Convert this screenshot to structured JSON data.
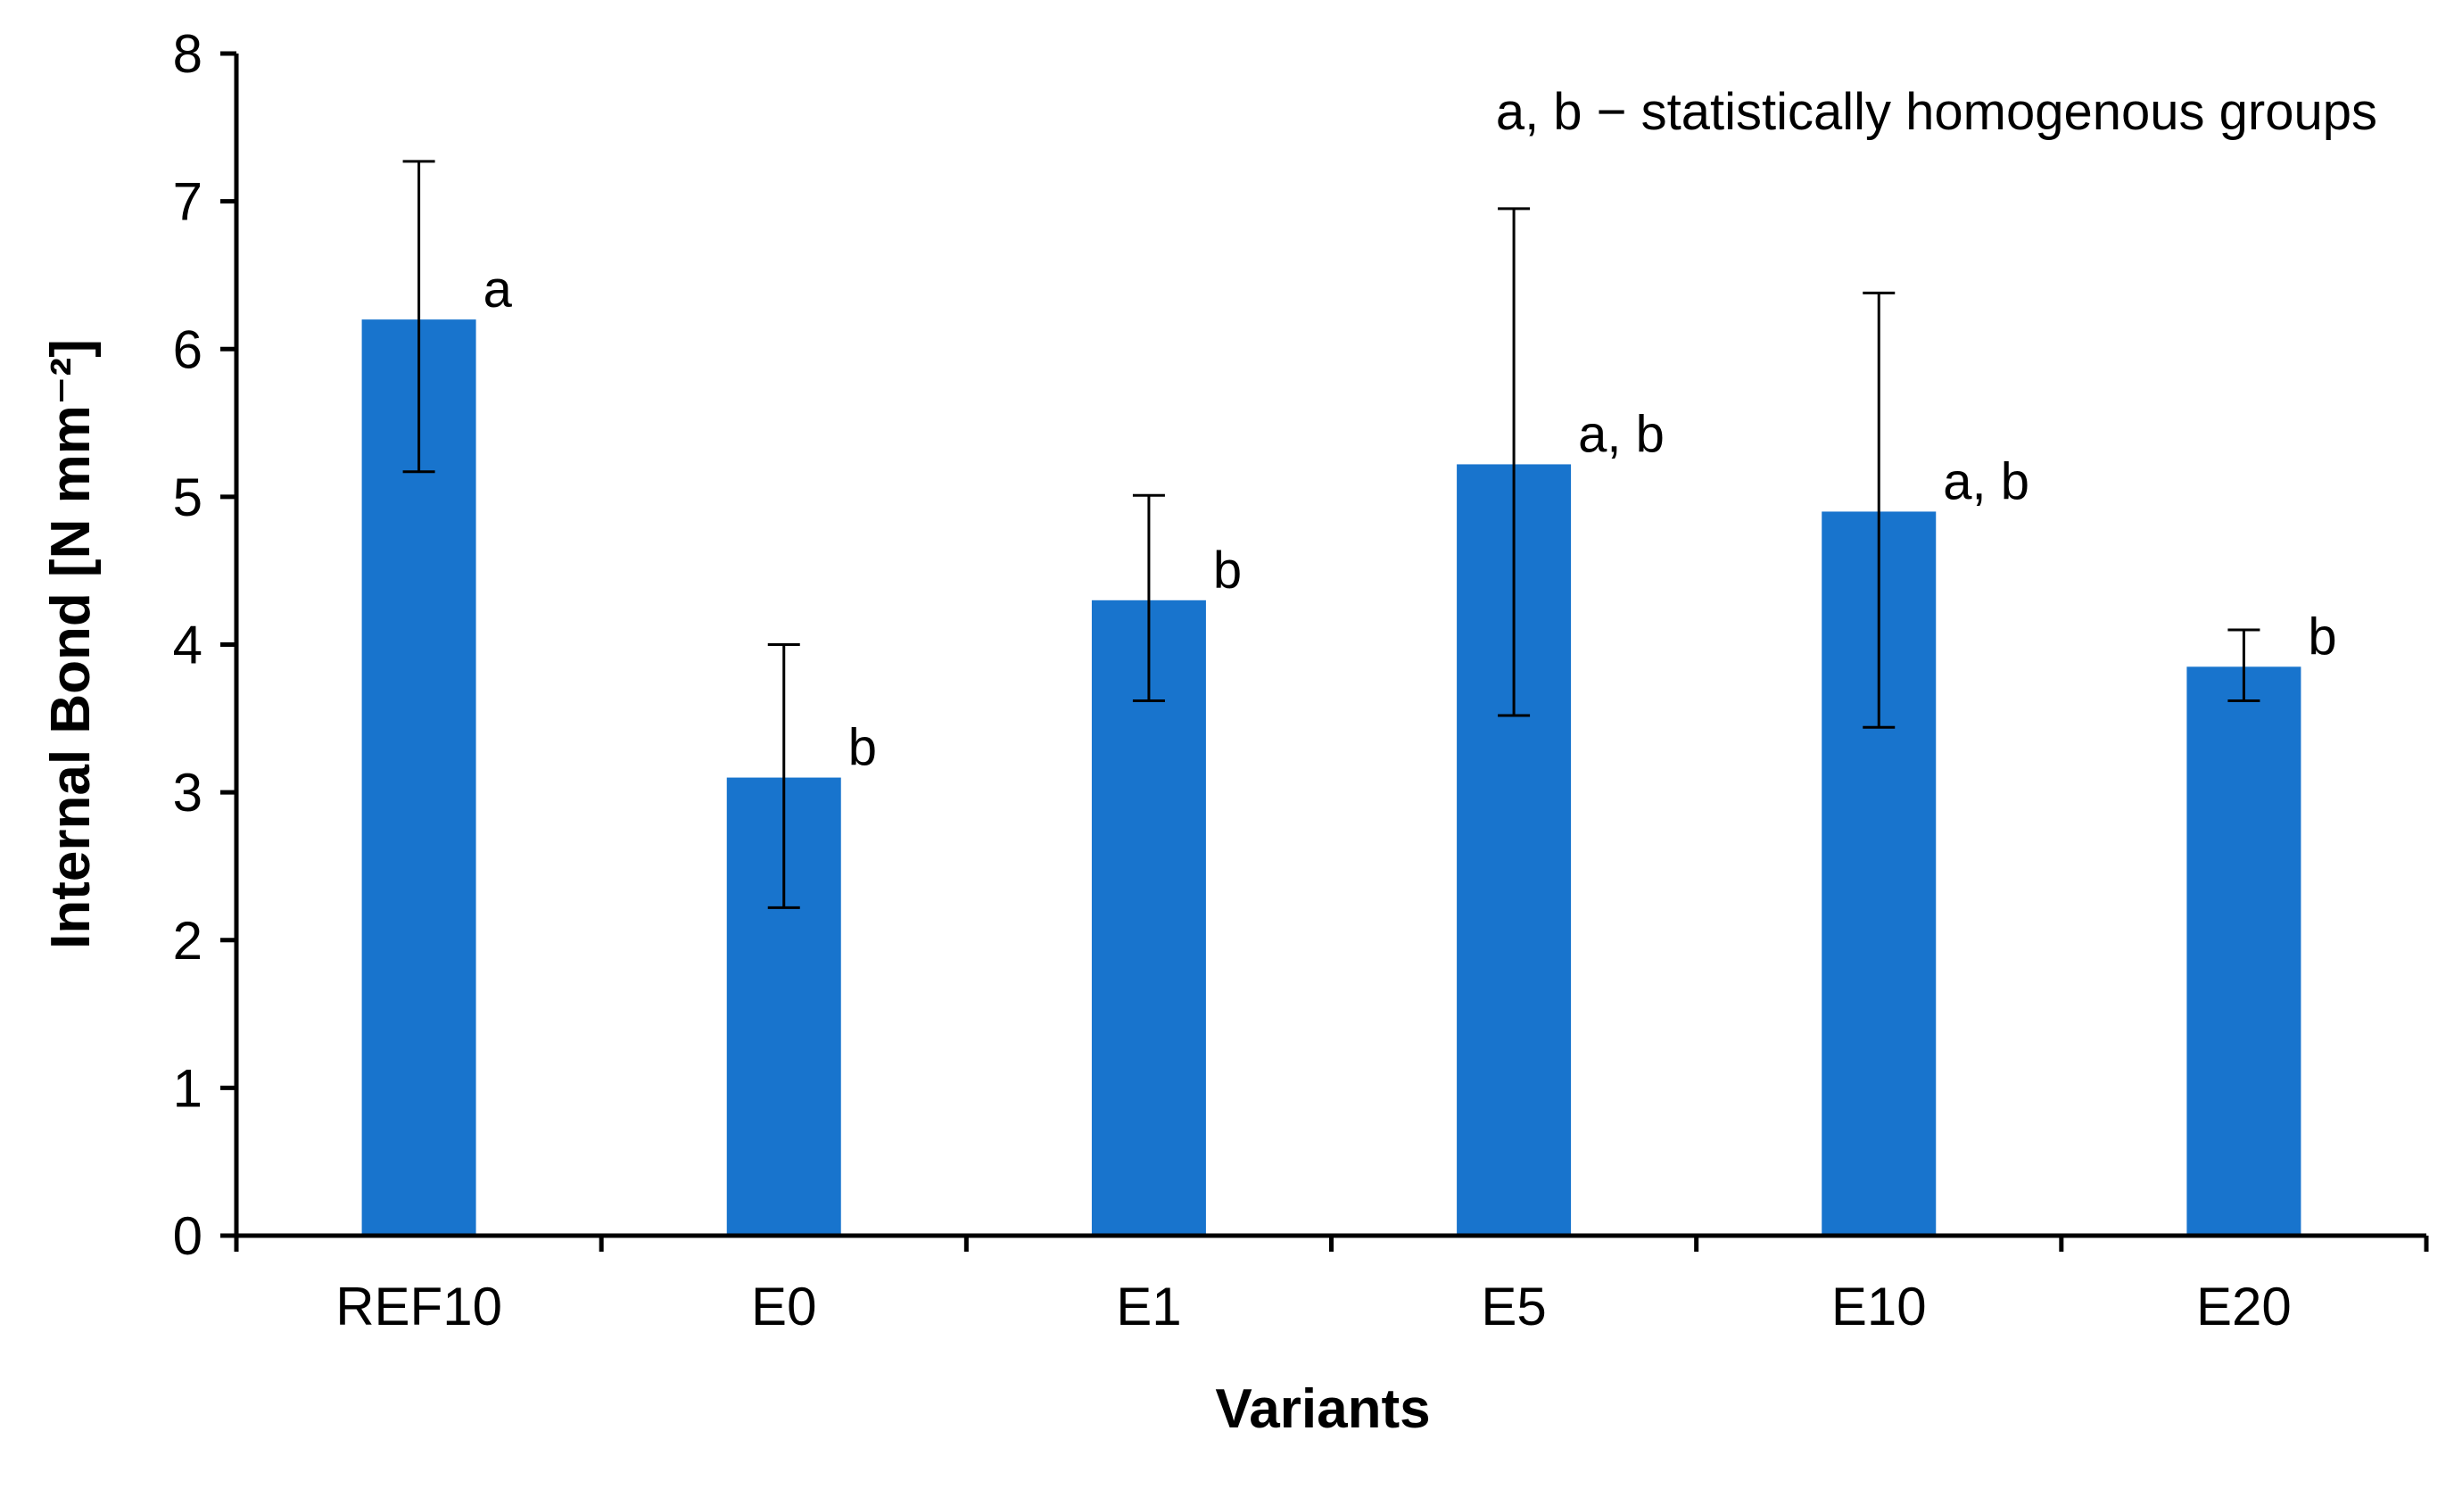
{
  "chart_data": {
    "type": "bar",
    "title": "",
    "xlabel": "Variants",
    "ylabel": "Internal Bond [N mm⁻²]",
    "ylim": [
      0,
      8
    ],
    "yticks": [
      0,
      1,
      2,
      3,
      4,
      5,
      6,
      7,
      8
    ],
    "grid": false,
    "categories": [
      "REF10",
      "E0",
      "E1",
      "E5",
      "E10",
      "E20"
    ],
    "series": [
      {
        "name": "Internal Bond",
        "color": "#1874CD",
        "values": [
          6.2,
          3.1,
          4.3,
          5.22,
          4.9,
          3.85
        ],
        "error_low": [
          5.17,
          2.22,
          3.62,
          3.52,
          3.44,
          3.62
        ],
        "error_high": [
          7.27,
          4.0,
          5.01,
          6.95,
          6.38,
          4.1
        ]
      }
    ],
    "group_labels": [
      "a",
      "b",
      "b",
      "a, b",
      "a, b",
      "b"
    ],
    "annotation": "a, b − statistically homogenous groups"
  }
}
